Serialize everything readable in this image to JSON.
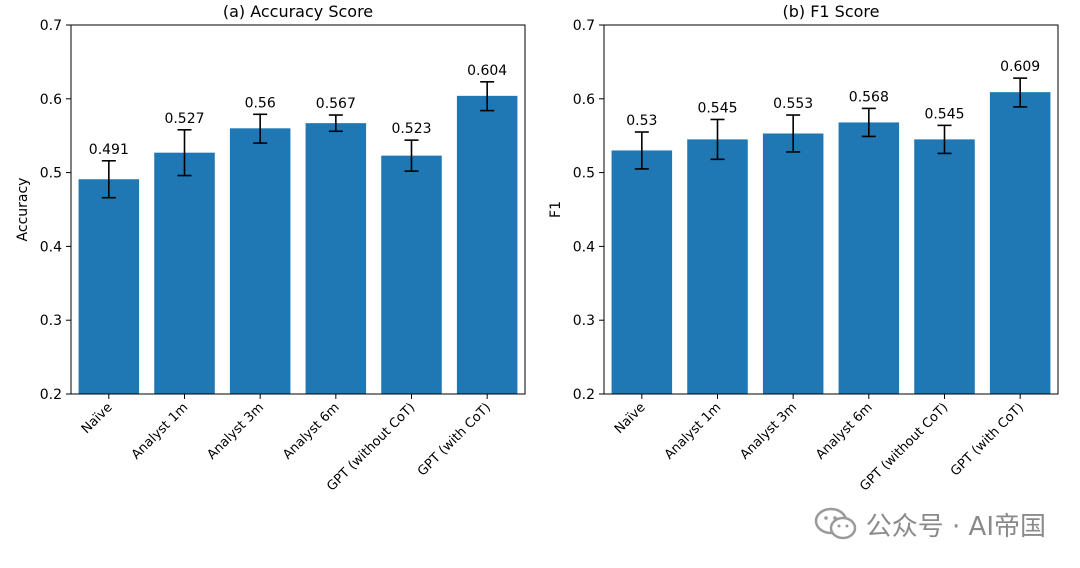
{
  "chart_data": [
    {
      "type": "bar",
      "title": "(a) Accuracy Score",
      "xlabel": "",
      "ylabel": "Accuracy",
      "ylim": [
        0.2,
        0.7
      ],
      "yticks": [
        "0.2",
        "0.3",
        "0.4",
        "0.5",
        "0.6",
        "0.7"
      ],
      "categories": [
        "Naïve",
        "Analyst 1m",
        "Analyst 3m",
        "Analyst 6m",
        "GPT (without CoT)",
        "GPT (with CoT)"
      ],
      "values": [
        0.491,
        0.527,
        0.56,
        0.567,
        0.523,
        0.604
      ],
      "value_labels": [
        "0.491",
        "0.527",
        "0.56",
        "0.567",
        "0.523",
        "0.604"
      ],
      "error_low": [
        0.466,
        0.496,
        0.54,
        0.556,
        0.502,
        0.584
      ],
      "error_high": [
        0.516,
        0.558,
        0.579,
        0.578,
        0.544,
        0.623
      ],
      "grid": false
    },
    {
      "type": "bar",
      "title": "(b) F1 Score",
      "xlabel": "",
      "ylabel": "F1",
      "ylim": [
        0.2,
        0.7
      ],
      "yticks": [
        "0.2",
        "0.3",
        "0.4",
        "0.5",
        "0.6",
        "0.7"
      ],
      "categories": [
        "Naïve",
        "Analyst 1m",
        "Analyst 3m",
        "Analyst 6m",
        "GPT (without CoT)",
        "GPT (with CoT)"
      ],
      "values": [
        0.53,
        0.545,
        0.553,
        0.568,
        0.545,
        0.609
      ],
      "value_labels": [
        "0.53",
        "0.545",
        "0.553",
        "0.568",
        "0.545",
        "0.609"
      ],
      "error_low": [
        0.505,
        0.518,
        0.528,
        0.549,
        0.526,
        0.589
      ],
      "error_high": [
        0.555,
        0.572,
        0.578,
        0.587,
        0.564,
        0.628
      ],
      "grid": false
    }
  ],
  "colors": {
    "bar": "#1f77b4",
    "axis": "#000000",
    "errorbar": "#000000"
  },
  "watermark": {
    "text": "公众号 · AI帝国",
    "icon": "wechat-icon"
  }
}
